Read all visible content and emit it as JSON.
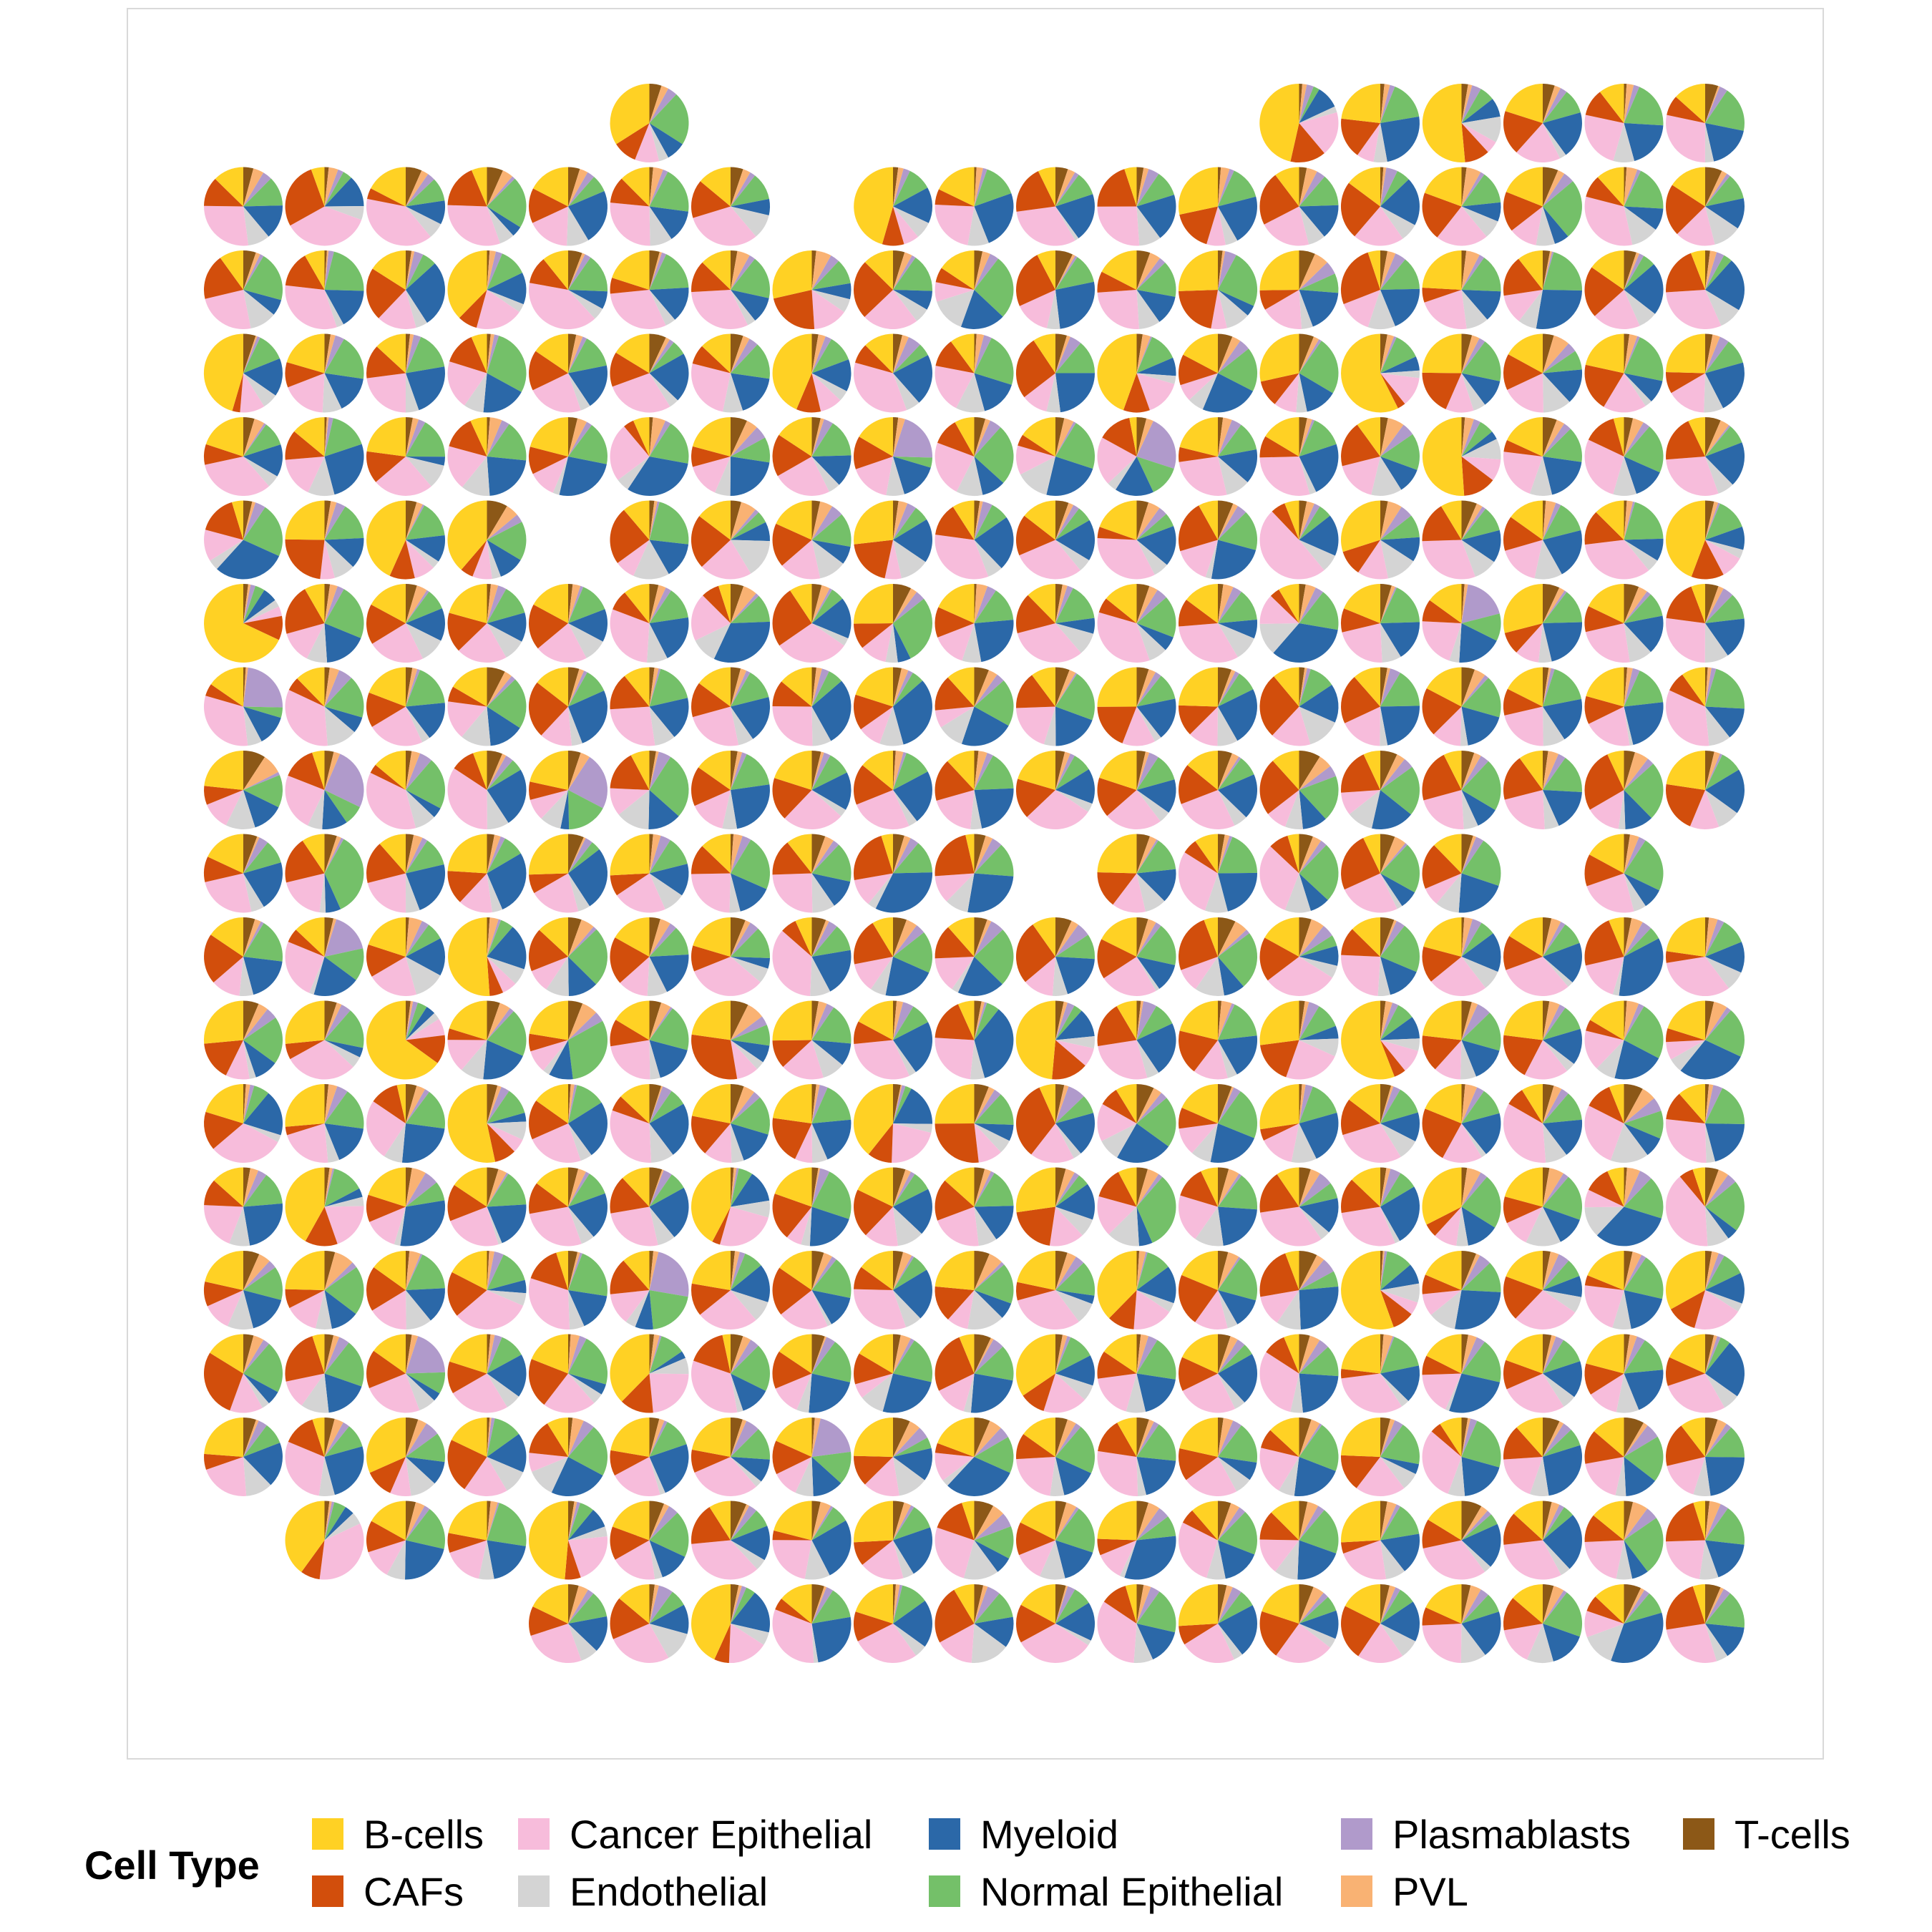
{
  "chart_data": {
    "type": "pie",
    "subtype": "spatial scatter-pie grid",
    "title": "",
    "xlabel": "",
    "ylabel": "",
    "grid": false,
    "panel_border": true,
    "legend": {
      "title": "Cell Type",
      "position": "bottom",
      "entries": [
        {
          "name": "B-cells",
          "color": "#FFD124"
        },
        {
          "name": "CAFs",
          "color": "#D24E0C"
        },
        {
          "name": "Cancer Epithelial",
          "color": "#F7BCDB"
        },
        {
          "name": "Endothelial",
          "color": "#D4D4D4"
        },
        {
          "name": "Myeloid",
          "color": "#2B68A8"
        },
        {
          "name": "Normal Epithelial",
          "color": "#74C069"
        },
        {
          "name": "Plasmablasts",
          "color": "#B09ACB"
        },
        {
          "name": "PVL",
          "color": "#F9B273"
        },
        {
          "name": "T-cells",
          "color": "#8C5817"
        }
      ]
    },
    "grid_layout": {
      "columns": 19,
      "rows": 19
    },
    "spot_rows": [
      {
        "row": 0,
        "cols": [
          5,
          13,
          14,
          15,
          16,
          17,
          18
        ]
      },
      {
        "row": 1,
        "cols": [
          0,
          1,
          2,
          3,
          4,
          5,
          6,
          8,
          9,
          10,
          11,
          12,
          13,
          14,
          15,
          16,
          17,
          18
        ]
      },
      {
        "row": 2,
        "cols": [
          0,
          1,
          2,
          3,
          4,
          5,
          6,
          7,
          8,
          9,
          10,
          11,
          12,
          13,
          14,
          15,
          16,
          17,
          18
        ]
      },
      {
        "row": 3,
        "cols": [
          0,
          1,
          2,
          3,
          4,
          5,
          6,
          7,
          8,
          9,
          10,
          11,
          12,
          13,
          14,
          15,
          16,
          17,
          18
        ]
      },
      {
        "row": 4,
        "cols": [
          0,
          1,
          2,
          3,
          4,
          5,
          6,
          7,
          8,
          9,
          10,
          11,
          12,
          13,
          14,
          15,
          16,
          17,
          18
        ]
      },
      {
        "row": 5,
        "cols": [
          0,
          1,
          2,
          3,
          5,
          6,
          7,
          8,
          9,
          10,
          11,
          12,
          13,
          14,
          15,
          16,
          17,
          18
        ]
      },
      {
        "row": 6,
        "cols": [
          0,
          1,
          2,
          3,
          4,
          5,
          6,
          7,
          8,
          9,
          10,
          11,
          12,
          13,
          14,
          15,
          16,
          17,
          18
        ]
      },
      {
        "row": 7,
        "cols": [
          0,
          1,
          2,
          3,
          4,
          5,
          6,
          7,
          8,
          9,
          10,
          11,
          12,
          13,
          14,
          15,
          16,
          17,
          18
        ]
      },
      {
        "row": 8,
        "cols": [
          0,
          1,
          2,
          3,
          4,
          5,
          6,
          7,
          8,
          9,
          10,
          11,
          12,
          13,
          14,
          15,
          16,
          17,
          18
        ]
      },
      {
        "row": 9,
        "cols": [
          0,
          1,
          2,
          3,
          4,
          5,
          6,
          7,
          8,
          9,
          11,
          12,
          13,
          14,
          15,
          17
        ]
      },
      {
        "row": 10,
        "cols": [
          0,
          1,
          2,
          3,
          4,
          5,
          6,
          7,
          8,
          9,
          10,
          11,
          12,
          13,
          14,
          15,
          16,
          17,
          18
        ]
      },
      {
        "row": 11,
        "cols": [
          0,
          1,
          2,
          3,
          4,
          5,
          6,
          7,
          8,
          9,
          10,
          11,
          12,
          13,
          14,
          15,
          16,
          17,
          18
        ]
      },
      {
        "row": 12,
        "cols": [
          0,
          1,
          2,
          3,
          4,
          5,
          6,
          7,
          8,
          9,
          10,
          11,
          12,
          13,
          14,
          15,
          16,
          17,
          18
        ]
      },
      {
        "row": 13,
        "cols": [
          0,
          1,
          2,
          3,
          4,
          5,
          6,
          7,
          8,
          9,
          10,
          11,
          12,
          13,
          14,
          15,
          16,
          17,
          18
        ]
      },
      {
        "row": 14,
        "cols": [
          0,
          1,
          2,
          3,
          4,
          5,
          6,
          7,
          8,
          9,
          10,
          11,
          12,
          13,
          14,
          15,
          16,
          17,
          18
        ]
      },
      {
        "row": 15,
        "cols": [
          0,
          1,
          2,
          3,
          4,
          5,
          6,
          7,
          8,
          9,
          10,
          11,
          12,
          13,
          14,
          15,
          16,
          17,
          18
        ]
      },
      {
        "row": 16,
        "cols": [
          0,
          1,
          2,
          3,
          4,
          5,
          6,
          7,
          8,
          9,
          10,
          11,
          12,
          13,
          14,
          15,
          16,
          17,
          18
        ]
      },
      {
        "row": 17,
        "cols": [
          1,
          2,
          3,
          4,
          5,
          6,
          7,
          8,
          9,
          10,
          11,
          12,
          13,
          14,
          15,
          16,
          17,
          18
        ]
      },
      {
        "row": 18,
        "cols": [
          4,
          5,
          6,
          7,
          8,
          9,
          10,
          11,
          12,
          13,
          14,
          15,
          16,
          17,
          18
        ]
      }
    ],
    "example_spot_fractions": {
      "order": [
        "B-cells",
        "CAFs",
        "Cancer Epithelial",
        "Endothelial",
        "Myeloid",
        "Normal Epithelial",
        "Plasmablasts",
        "PVL",
        "T-cells"
      ],
      "row0_col5": [
        0.34,
        0.1,
        0.1,
        0.04,
        0.08,
        0.22,
        0.04,
        0.03,
        0.05
      ],
      "row4_col11": [
        0.03,
        0.14,
        0.2,
        0.04,
        0.16,
        0.13,
        0.23,
        0.03,
        0.04
      ],
      "row6_col0": [
        0.68,
        0.1,
        0.04,
        0.03,
        0.06,
        0.04,
        0.02,
        0.01,
        0.02
      ],
      "row11_col2": [
        0.65,
        0.12,
        0.07,
        0.03,
        0.04,
        0.04,
        0.02,
        0.01,
        0.02
      ],
      "row17_col1": [
        0.4,
        0.08,
        0.34,
        0.05,
        0.04,
        0.05,
        0.01,
        0.01,
        0.02
      ]
    }
  }
}
